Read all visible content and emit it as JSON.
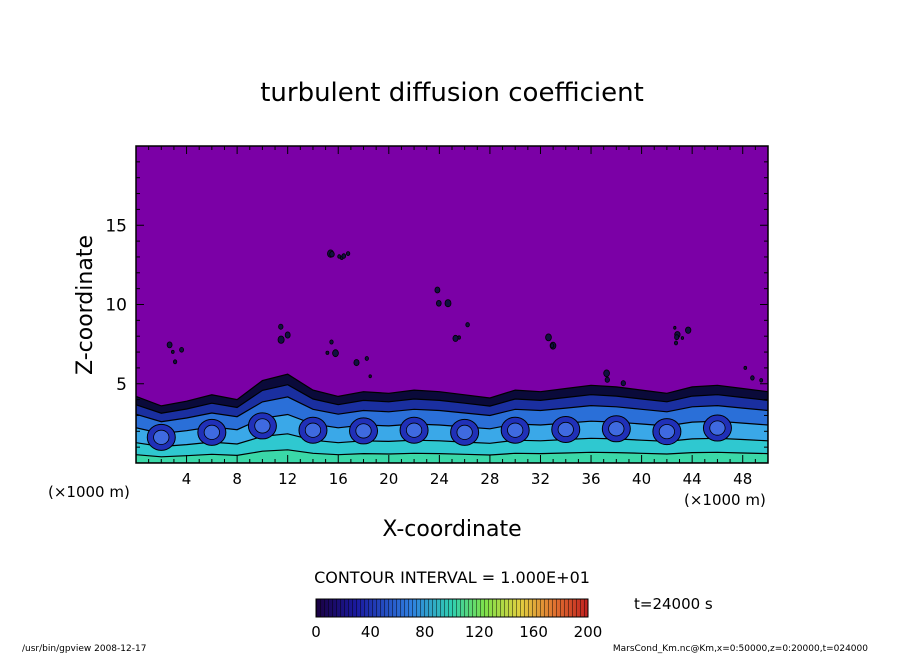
{
  "chart_data": {
    "type": "heatmap",
    "title": "turbulent diffusion coefficient",
    "xlabel": "X-coordinate",
    "ylabel": "Z-coordinate",
    "x_unit": "(×1000 m)",
    "y_unit": "(×1000 m)",
    "xlim": [
      0,
      50
    ],
    "ylim": [
      0,
      20
    ],
    "x_ticks": [
      4,
      8,
      12,
      16,
      20,
      24,
      28,
      32,
      36,
      40,
      44,
      48
    ],
    "y_ticks": [
      5,
      10,
      15
    ],
    "contour_interval": "CONTOUR INTERVAL = 1.000E+01",
    "time_label": "t=24000 s",
    "colorbar": {
      "range": [
        0,
        200
      ],
      "ticks": [
        0,
        40,
        80,
        120,
        160,
        200
      ]
    },
    "background_color": "#7B00A6",
    "turbulent_layer_top_profile": {
      "x": [
        0,
        2,
        4,
        6,
        8,
        10,
        12,
        14,
        16,
        18,
        20,
        22,
        24,
        26,
        28,
        30,
        32,
        34,
        36,
        38,
        40,
        42,
        44,
        46,
        48,
        50
      ],
      "z": [
        4.2,
        3.6,
        3.9,
        4.3,
        4.0,
        5.2,
        5.6,
        4.6,
        4.2,
        4.5,
        4.4,
        4.6,
        4.5,
        4.3,
        4.1,
        4.6,
        4.5,
        4.7,
        4.9,
        4.8,
        4.6,
        4.4,
        4.8,
        4.9,
        4.7,
        4.5
      ]
    }
  },
  "footer": {
    "left": "/usr/bin/gpview   2008-12-17",
    "right": "MarsCond_Km.nc@Km,x=0:50000,z=0:20000,t=024000"
  }
}
